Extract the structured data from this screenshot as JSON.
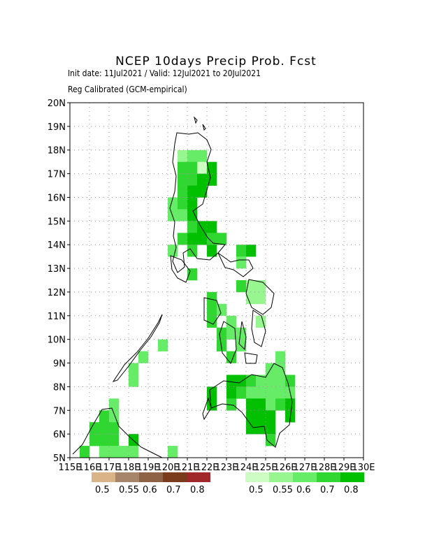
{
  "header": {
    "title": "NCEP 10days Precip Prob. Fcst",
    "subtitle": "Init date: 11Jul2021 / Valid: 12Jul2021 to 20Jul2021",
    "method": "Reg Calibrated (GCM-empirical)"
  },
  "axes": {
    "lat_ticks": [
      "5N",
      "6N",
      "7N",
      "8N",
      "9N",
      "10N",
      "11N",
      "12N",
      "13N",
      "14N",
      "15N",
      "16N",
      "17N",
      "18N",
      "19N",
      "20N"
    ],
    "lon_ticks": [
      "115E",
      "116E",
      "117E",
      "118E",
      "119E",
      "120E",
      "121E",
      "122E",
      "123E",
      "124E",
      "125E",
      "126E",
      "127E",
      "128E",
      "129E",
      "130E"
    ],
    "lon_range": [
      115,
      130
    ],
    "lat_range": [
      5,
      20
    ]
  },
  "legend": {
    "dry": {
      "colors": [
        "#d9b489",
        "#a7856a",
        "#8e6345",
        "#7a3c1c",
        "#a0282b"
      ],
      "labels": [
        "0.5",
        "0.55",
        "0.6",
        "0.7",
        "0.8"
      ]
    },
    "wet": {
      "colors": [
        "#cdfdc3",
        "#98f690",
        "#66ec66",
        "#30d730",
        "#00c000"
      ],
      "labels": [
        "0.5",
        "0.55",
        "0.6",
        "0.7",
        "0.8"
      ]
    }
  },
  "chart_data": {
    "type": "heatmap",
    "cells": [
      [
        120.5,
        17.5,
        1
      ],
      [
        121.0,
        17.5,
        2
      ],
      [
        121.5,
        17.5,
        2
      ],
      [
        121.5,
        17.0,
        0
      ],
      [
        122.0,
        17.0,
        4
      ],
      [
        121.0,
        17.0,
        3
      ],
      [
        120.5,
        17.0,
        3
      ],
      [
        120.5,
        16.5,
        3
      ],
      [
        121.0,
        16.5,
        3
      ],
      [
        121.5,
        16.5,
        4
      ],
      [
        122.0,
        16.5,
        4
      ],
      [
        120.5,
        16.0,
        3
      ],
      [
        121.0,
        16.0,
        4
      ],
      [
        121.5,
        16.0,
        4
      ],
      [
        120.0,
        15.5,
        2
      ],
      [
        120.5,
        15.5,
        3
      ],
      [
        121.0,
        15.5,
        4
      ],
      [
        120.0,
        15.0,
        2
      ],
      [
        120.5,
        15.0,
        2
      ],
      [
        121.0,
        15.0,
        4
      ],
      [
        121.0,
        14.5,
        3
      ],
      [
        121.5,
        14.5,
        4
      ],
      [
        122.0,
        14.5,
        4
      ],
      [
        120.5,
        14.0,
        3
      ],
      [
        121.0,
        14.0,
        4
      ],
      [
        121.5,
        14.0,
        4
      ],
      [
        122.0,
        14.0,
        3
      ],
      [
        122.5,
        14.0,
        3
      ],
      [
        120.0,
        13.5,
        2
      ],
      [
        121.0,
        13.5,
        3
      ],
      [
        122.0,
        13.5,
        4
      ],
      [
        123.5,
        13.5,
        3
      ],
      [
        124.0,
        13.5,
        4
      ],
      [
        123.5,
        13.0,
        2
      ],
      [
        121.0,
        12.5,
        3
      ],
      [
        123.5,
        12.0,
        3
      ],
      [
        124.0,
        12.0,
        1
      ],
      [
        124.5,
        12.0,
        1
      ],
      [
        124.0,
        11.5,
        1
      ],
      [
        124.5,
        11.5,
        1
      ],
      [
        122.0,
        11.5,
        3
      ],
      [
        122.0,
        11.0,
        3
      ],
      [
        122.5,
        11.0,
        2
      ],
      [
        122.0,
        10.5,
        3
      ],
      [
        123.0,
        10.5,
        2
      ],
      [
        124.5,
        10.5,
        1
      ],
      [
        122.5,
        10.0,
        3
      ],
      [
        123.0,
        10.0,
        2
      ],
      [
        123.5,
        10.0,
        2
      ],
      [
        119.5,
        9.5,
        2
      ],
      [
        122.5,
        9.5,
        3
      ],
      [
        123.5,
        9.5,
        2
      ],
      [
        123.0,
        9.0,
        3
      ],
      [
        125.5,
        9.0,
        2
      ],
      [
        118.5,
        9.0,
        2
      ],
      [
        118.0,
        8.5,
        2
      ],
      [
        118.0,
        8.0,
        2
      ],
      [
        125.0,
        8.5,
        2
      ],
      [
        125.5,
        8.5,
        2
      ],
      [
        123.0,
        8.0,
        4
      ],
      [
        123.5,
        8.0,
        4
      ],
      [
        124.0,
        8.0,
        3
      ],
      [
        124.5,
        8.0,
        2
      ],
      [
        125.0,
        8.0,
        2
      ],
      [
        125.5,
        8.0,
        2
      ],
      [
        126.0,
        8.0,
        3
      ],
      [
        123.0,
        7.5,
        4
      ],
      [
        123.5,
        7.5,
        3
      ],
      [
        124.0,
        7.5,
        2
      ],
      [
        124.5,
        7.5,
        2
      ],
      [
        125.0,
        7.5,
        2
      ],
      [
        125.5,
        7.5,
        2
      ],
      [
        126.0,
        7.5,
        2
      ],
      [
        122.0,
        7.5,
        4
      ],
      [
        122.0,
        7.0,
        4
      ],
      [
        123.0,
        7.0,
        3
      ],
      [
        124.0,
        7.0,
        4
      ],
      [
        124.5,
        7.0,
        4
      ],
      [
        125.0,
        7.0,
        2
      ],
      [
        125.5,
        7.0,
        3
      ],
      [
        126.0,
        7.0,
        4
      ],
      [
        124.0,
        6.5,
        4
      ],
      [
        124.5,
        6.5,
        4
      ],
      [
        125.0,
        6.5,
        4
      ],
      [
        126.0,
        6.5,
        4
      ],
      [
        124.0,
        6.0,
        4
      ],
      [
        124.5,
        6.0,
        4
      ],
      [
        125.0,
        6.0,
        4
      ],
      [
        125.0,
        5.5,
        3
      ],
      [
        117.0,
        7.0,
        2
      ],
      [
        116.5,
        6.5,
        3
      ],
      [
        117.0,
        6.5,
        2
      ],
      [
        116.5,
        6.0,
        3
      ],
      [
        117.0,
        6.0,
        3
      ],
      [
        116.0,
        6.0,
        3
      ],
      [
        116.5,
        5.5,
        3
      ],
      [
        117.0,
        5.5,
        3
      ],
      [
        118.0,
        5.5,
        4
      ],
      [
        116.0,
        5.5,
        3
      ],
      [
        116.5,
        5.0,
        2
      ],
      [
        117.0,
        5.0,
        2
      ],
      [
        117.5,
        5.0,
        2
      ],
      [
        118.0,
        5.0,
        2
      ],
      [
        115.5,
        5.0,
        3
      ],
      [
        120.0,
        5.0,
        2
      ]
    ]
  }
}
